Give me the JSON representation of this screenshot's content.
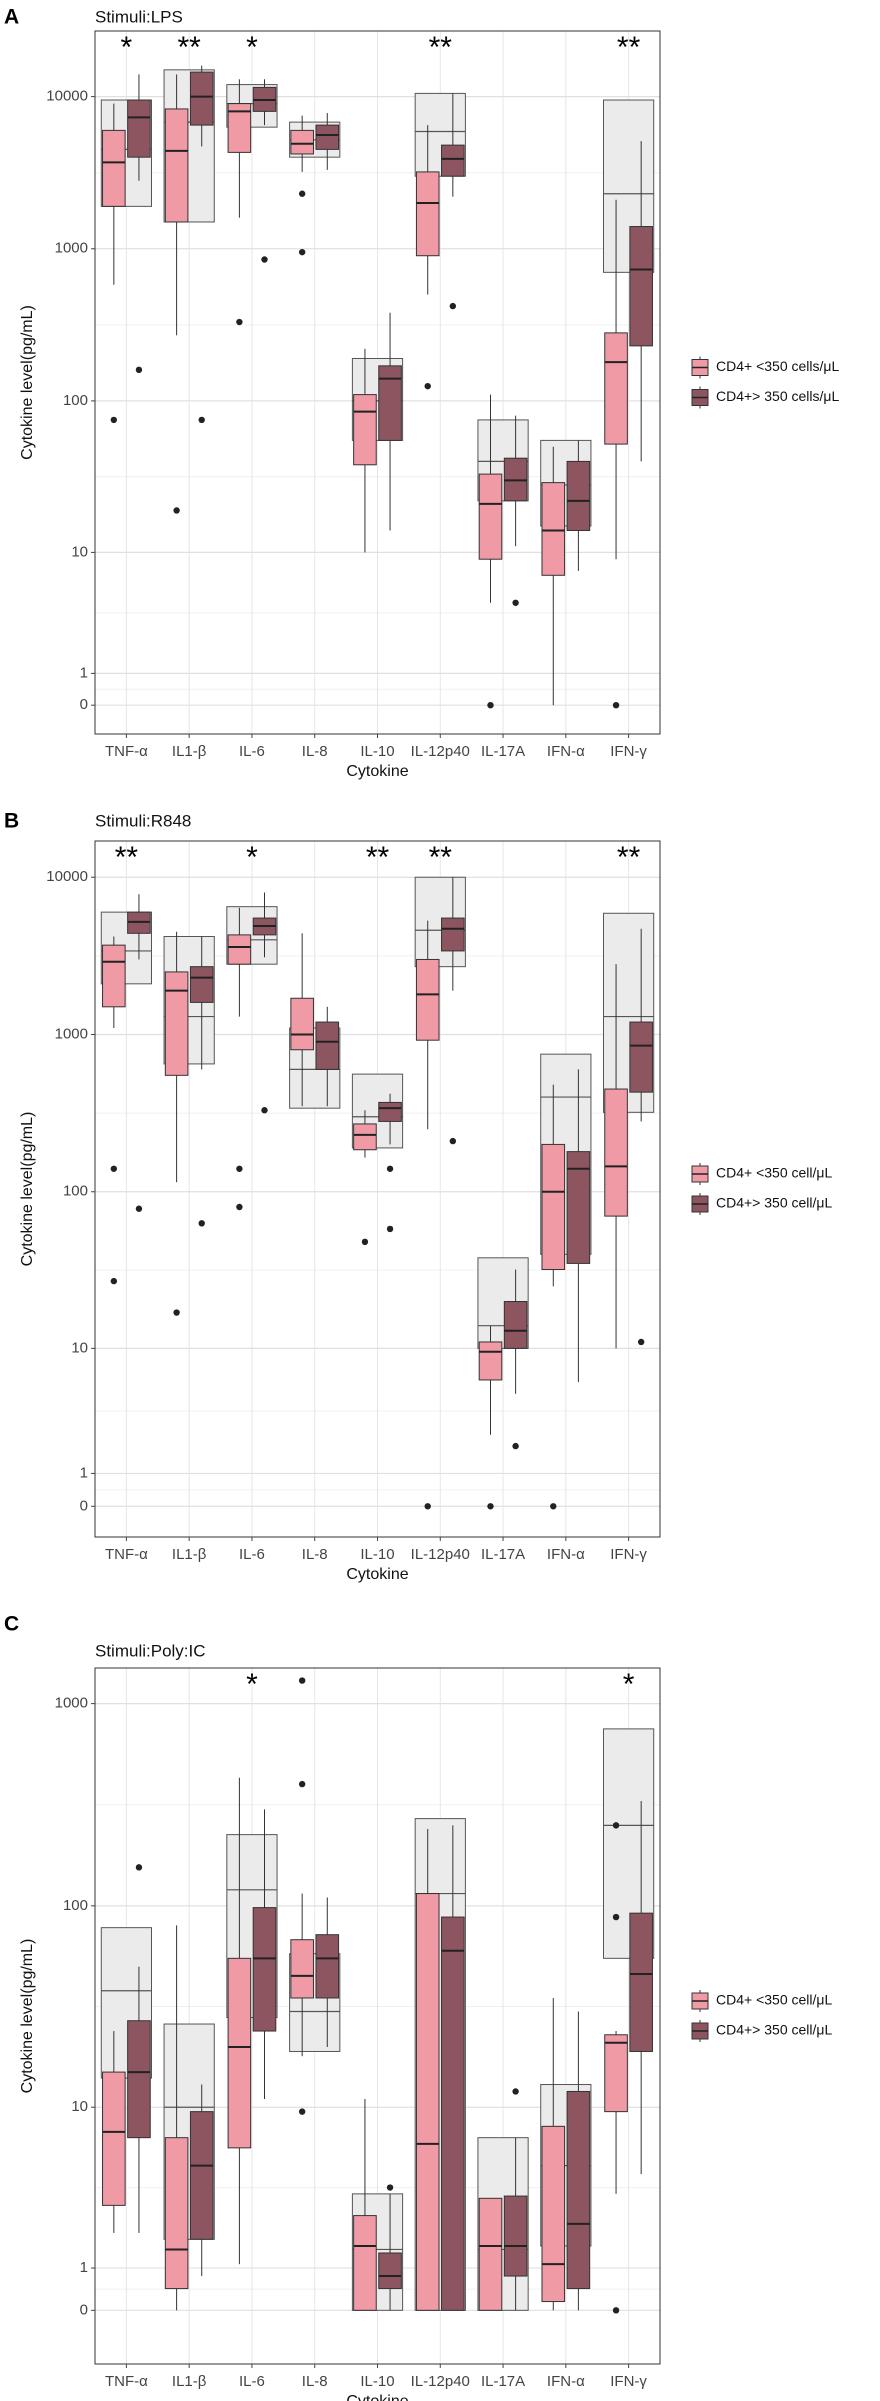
{
  "chart_data": [
    {
      "type": "box",
      "panel_label": "A",
      "title": "Stimuli:LPS",
      "x_label": "Cytokine",
      "y_label": "Cytokine level(pg/mL)",
      "categories": [
        "TNF-α",
        "IL1-β",
        "IL-6",
        "IL-8",
        "IL-10",
        "IL-12p40",
        "IL-17A",
        "IFN-α",
        "IFN-γ"
      ],
      "annotations": [
        "*",
        "**",
        "*",
        null,
        null,
        "**",
        null,
        null,
        "**"
      ],
      "scale": "pseudo_log",
      "ylim": [
        -0.9,
        27000
      ],
      "yticks": [
        0,
        1,
        10,
        100,
        1000,
        10000
      ],
      "grid": true,
      "legend": "right",
      "overall": {
        "color": "#ebebeb",
        "q1": [
          1900,
          1500,
          6300,
          4000,
          55,
          3000,
          22,
          15,
          700
        ],
        "median": [
          4500,
          6800,
          9000,
          5200,
          100,
          5900,
          40,
          28,
          2300
        ],
        "q3": [
          9500,
          15000,
          12000,
          6800,
          190,
          10500,
          75,
          55,
          9500
        ]
      },
      "series": [
        {
          "name": "CD4+ <350 cells/μL",
          "color": "#ef9aa5",
          "whislo": [
            580,
            270,
            1600,
            3200,
            10,
            500,
            4.5,
            0,
            9
          ],
          "q1": [
            1900,
            1500,
            4300,
            4200,
            38,
            900,
            9,
            7,
            52
          ],
          "median": [
            3700,
            4400,
            8000,
            4900,
            85,
            2000,
            21,
            14,
            180
          ],
          "q3": [
            6000,
            8300,
            9000,
            6000,
            110,
            3200,
            33,
            29,
            280
          ],
          "whishi": [
            9000,
            14000,
            13000,
            7500,
            220,
            6500,
            110,
            50,
            2100
          ],
          "outliers": [
            [
              75
            ],
            [
              19
            ],
            [
              330
            ],
            [
              2300,
              950
            ],
            [],
            [
              125
            ],
            [
              0
            ],
            [],
            [
              0
            ]
          ]
        },
        {
          "name": "CD4+> 350 cells/μL",
          "color": "#8c5560",
          "whislo": [
            2800,
            4700,
            6500,
            3300,
            14,
            2200,
            11,
            7.5,
            40
          ],
          "q1": [
            4000,
            6500,
            8000,
            4500,
            55,
            3000,
            22,
            14,
            230
          ],
          "median": [
            7300,
            10000,
            9500,
            5600,
            140,
            3900,
            30,
            22,
            730
          ],
          "q3": [
            9500,
            14500,
            11500,
            6500,
            170,
            4800,
            42,
            40,
            1400
          ],
          "whishi": [
            14000,
            16000,
            13000,
            7800,
            380,
            10500,
            80,
            55,
            5100
          ],
          "outliers": [
            [
              160
            ],
            [
              75
            ],
            [
              850
            ],
            [],
            [],
            [
              420
            ],
            [
              4.5
            ],
            [],
            []
          ]
        }
      ]
    },
    {
      "type": "box",
      "panel_label": "B",
      "title": "Stimuli:R848",
      "x_label": "Cytokine",
      "y_label": "Cytokine level(pg/mL)",
      "categories": [
        "TNF-α",
        "IL1-β",
        "IL-6",
        "IL-8",
        "IL-10",
        "IL-12p40",
        "IL-17A",
        "IFN-α",
        "IFN-γ"
      ],
      "annotations": [
        "**",
        null,
        "*",
        null,
        "**",
        "**",
        null,
        null,
        "**"
      ],
      "scale": "pseudo_log",
      "ylim": [
        -0.93,
        17000
      ],
      "yticks": [
        0,
        1,
        10,
        100,
        1000,
        10000
      ],
      "grid": true,
      "legend": "right",
      "overall": {
        "color": "#ebebeb",
        "q1": [
          2100,
          650,
          2800,
          340,
          190,
          2700,
          10,
          40,
          320
        ],
        "median": [
          3400,
          1300,
          4000,
          600,
          300,
          4600,
          14,
          400,
          1300
        ],
        "q3": [
          6000,
          4200,
          6500,
          1100,
          560,
          10000,
          38,
          750,
          5900
        ]
      },
      "series": [
        {
          "name": "CD4+ <350 cell/μL",
          "color": "#ef9aa5",
          "whislo": [
            1100,
            115,
            1300,
            350,
            165,
            250,
            2.5,
            25,
            10
          ],
          "q1": [
            1500,
            550,
            2800,
            800,
            185,
            920,
            6.2,
            32,
            70
          ],
          "median": [
            2900,
            1900,
            3600,
            1000,
            230,
            1800,
            9.5,
            100,
            145
          ],
          "q3": [
            3700,
            2500,
            4300,
            1700,
            270,
            3000,
            11,
            200,
            450
          ],
          "whishi": [
            4200,
            4500,
            6400,
            4400,
            330,
            5300,
            14,
            480,
            2800
          ],
          "outliers": [
            [
              140,
              27
            ],
            [
              17
            ],
            [
              140,
              80
            ],
            [],
            [
              48
            ],
            [
              0
            ],
            [
              0
            ],
            [
              0
            ],
            []
          ]
        },
        {
          "name": "CD4+> 350 cell/μL",
          "color": "#8c5560",
          "whislo": [
            3000,
            600,
            3100,
            350,
            200,
            1900,
            5,
            6,
            280
          ],
          "q1": [
            4400,
            1600,
            4300,
            600,
            280,
            3400,
            10,
            35,
            430
          ],
          "median": [
            5200,
            2300,
            4900,
            900,
            340,
            4700,
            13,
            140,
            850
          ],
          "q3": [
            6000,
            2700,
            5500,
            1200,
            370,
            5500,
            20,
            180,
            1200
          ],
          "whishi": [
            7800,
            4200,
            8000,
            1500,
            420,
            10000,
            32,
            600,
            4700
          ],
          "outliers": [
            [
              78
            ],
            [
              63
            ],
            [
              330
            ],
            [],
            [
              140,
              58
            ],
            [
              210
            ],
            [
              2
            ],
            [],
            [
              11
            ]
          ]
        }
      ]
    },
    {
      "type": "box",
      "panel_label": "C",
      "title": "Stimuli:Poly:IC",
      "x_label": "Cytokine",
      "y_label": "Cytokine level(pg/mL)",
      "categories": [
        "TNF-α",
        "IL1-β",
        "IL-6",
        "IL-8",
        "IL-10",
        "IL-12p40",
        "IL-17A",
        "IFN-α",
        "IFN-γ"
      ],
      "annotations": [
        null,
        null,
        "*",
        null,
        null,
        null,
        null,
        null,
        "*"
      ],
      "scale": "pseudo_log",
      "ylim": [
        -1.3,
        1500
      ],
      "yticks": [
        0,
        1,
        10,
        100,
        1000
      ],
      "grid": true,
      "legend": "right",
      "overall": {
        "color": "#ebebeb",
        "q1": [
          14,
          1.8,
          28,
          19,
          0,
          0,
          0,
          1.6,
          55
        ],
        "median": [
          38,
          10,
          120,
          30,
          1.5,
          115,
          1.5,
          5,
          250
        ],
        "q3": [
          78,
          26,
          225,
          58,
          3.5,
          270,
          7,
          13,
          750
        ]
      },
      "series": [
        {
          "name": "CD4+ <350 cell/μL",
          "color": "#ef9aa5",
          "whislo": [
            2,
            0,
            1.1,
            18,
            0,
            0,
            0,
            0,
            3.5
          ],
          "q1": [
            3,
            0.5,
            6.2,
            35,
            0,
            0,
            0,
            0.2,
            9.5
          ],
          "median": [
            7.5,
            1.5,
            20,
            45,
            1.6,
            6.5,
            1.6,
            1.1,
            21
          ],
          "q3": [
            15,
            7,
            55,
            68,
            2.6,
            115,
            3.3,
            8,
            23
          ],
          "whishi": [
            24,
            80,
            430,
            115,
            11,
            240,
            3.3,
            35,
            24
          ],
          "outliers": [
            [],
            [],
            [],
            [
              1300,
              400,
              9.5
            ],
            [],
            [],
            [],
            [],
            [
              250,
              88,
              0
            ]
          ]
        },
        {
          "name": "CD4+> 350 cell/μL",
          "color": "#8c5560",
          "whislo": [
            2,
            0.8,
            11,
            20,
            0,
            0,
            0,
            0,
            4.5
          ],
          "q1": [
            7,
            1.8,
            24,
            35,
            0.5,
            0,
            0.8,
            0.5,
            19
          ],
          "median": [
            15,
            5,
            55,
            55,
            0.8,
            60,
            1.6,
            2.3,
            46
          ],
          "q3": [
            27,
            9.5,
            98,
            72,
            1.4,
            88,
            3.4,
            12,
            92
          ],
          "whishi": [
            50,
            13,
            300,
            110,
            3.5,
            250,
            7,
            30,
            330
          ],
          "outliers": [
            [
              155
            ],
            [],
            [],
            [],
            [
              3.8
            ],
            [],
            [
              12
            ],
            [],
            []
          ]
        }
      ]
    }
  ]
}
